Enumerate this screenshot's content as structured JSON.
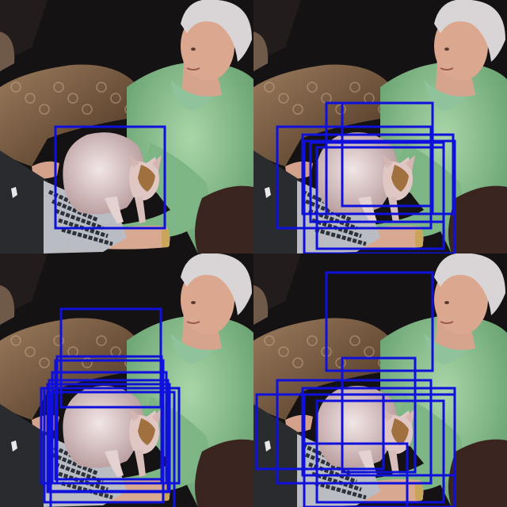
{
  "image": {
    "panel_count": 4,
    "layout": "2x2 grid",
    "box_color": "#1010dd",
    "scene": [
      "woman",
      "cat",
      "laptop",
      "cushion",
      "sofa"
    ]
  },
  "panels": [
    {
      "id": "top-left",
      "box_count": 1
    },
    {
      "id": "top-right",
      "box_count": 7
    },
    {
      "id": "bottom-left",
      "box_count": 9
    },
    {
      "id": "bottom-right",
      "box_count": 8
    }
  ]
}
